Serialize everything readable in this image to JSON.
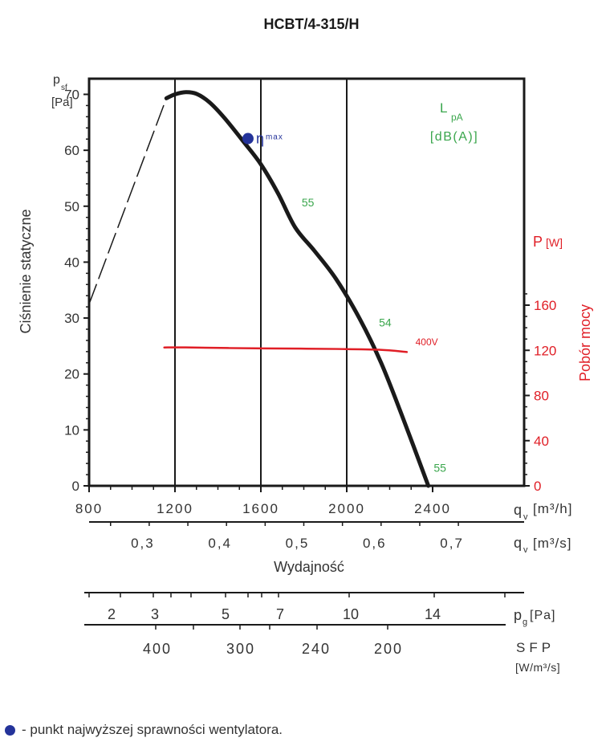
{
  "chart_data": {
    "type": "line",
    "title": "HCBT/4-315/H",
    "ylabel": "Ciśnienie statyczne",
    "y_symbol": "p",
    "y_symbol_sub": "sf",
    "y_unit": "[Pa]",
    "ylim": [
      0,
      70
    ],
    "yticks": [
      0,
      10,
      20,
      30,
      40,
      50,
      60,
      70
    ],
    "xlim": [
      800,
      2400
    ],
    "xticks": [
      "800",
      "1200",
      "1600",
      "2000",
      "2400"
    ],
    "x_tick_values": [
      800,
      1200,
      1600,
      2000,
      2400
    ],
    "xlabel": "Wydajność",
    "x_symbol": "q",
    "x_symbol_sub": "v",
    "x_unit_m3h": "[m³/h]",
    "x_unit_m3s": "[m³/s]",
    "x2_ticks": [
      {
        "label": "0,3",
        "value": 1080
      },
      {
        "label": "0,4",
        "value": 1440
      },
      {
        "label": "0,5",
        "value": 1800
      },
      {
        "label": "0,6",
        "value": 2160
      },
      {
        "label": "0,7",
        "value": 2520
      }
    ],
    "series": [
      {
        "name": "pressure",
        "color": "#1a1a1a",
        "points": [
          [
            1160,
            69.3
          ],
          [
            1200,
            70.0
          ],
          [
            1250,
            70.4
          ],
          [
            1300,
            70.1
          ],
          [
            1360,
            68.6
          ],
          [
            1430,
            65.8
          ],
          [
            1520,
            61.5
          ],
          [
            1600,
            57.5
          ],
          [
            1680,
            52.3
          ],
          [
            1760,
            46.2
          ],
          [
            1850,
            42.0
          ],
          [
            1950,
            37.0
          ],
          [
            2060,
            29.9
          ],
          [
            2160,
            22.0
          ],
          [
            2260,
            12.3
          ],
          [
            2380,
            0
          ]
        ]
      },
      {
        "name": "pressure-dashed",
        "color": "#1a1a1a",
        "points": [
          [
            800,
            32.5
          ],
          [
            1160,
            69.3
          ]
        ]
      },
      {
        "name": "power",
        "color": "#e01e26",
        "axis": "right",
        "points": [
          [
            1150,
            122.5
          ],
          [
            1250,
            122.6
          ],
          [
            1450,
            122.0
          ],
          [
            1700,
            121.6
          ],
          [
            1950,
            121.2
          ],
          [
            2150,
            120.5
          ],
          [
            2280,
            118.5
          ]
        ]
      }
    ],
    "right_axis": {
      "label": "Pobór mocy",
      "symbol": "P",
      "unit": "[W]",
      "ylim": [
        0,
        170
      ],
      "yticks": [
        0,
        40,
        80,
        120,
        160
      ]
    },
    "annotations": {
      "lpa_title": "L",
      "lpa_sub": "pA",
      "lpa_unit": "[dB(A)]",
      "points": [
        {
          "text": "55",
          "x": 1790,
          "y": 50
        },
        {
          "text": "54",
          "x": 2150,
          "y": 28.5
        },
        {
          "text": "55",
          "x": 2405,
          "y": 2.5
        },
        {
          "text": "400V",
          "x": 2320,
          "y": 124.5,
          "axis": "right"
        }
      ],
      "eta_symbol": "η",
      "eta_label": "max",
      "eta_point": {
        "x": 1540,
        "y": 62.1
      }
    },
    "pg_scale": {
      "symbol": "p",
      "sub": "g",
      "unit": "[Pa]",
      "ticks": [
        "2",
        "3",
        "5",
        "7",
        "10",
        "14"
      ]
    },
    "sfp_scale": {
      "label": "SFP",
      "unit": "[W/m³/s]",
      "ticks": [
        "400",
        "300",
        "240",
        "200"
      ]
    },
    "colors": {
      "axis": "#1a1a1a",
      "power": "#e01e26",
      "lpa": "#3aa64c",
      "eta": "#24339a",
      "text": "#333333"
    }
  },
  "footnote": "- punkt najwyższej sprawności wentylatora."
}
